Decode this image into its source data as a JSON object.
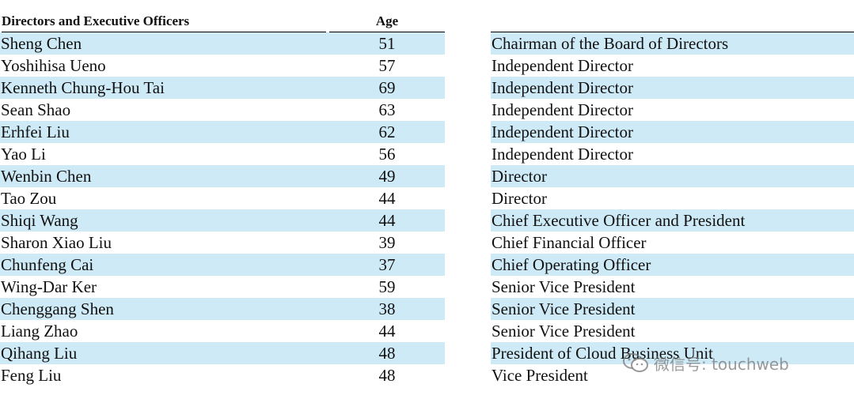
{
  "table": {
    "headers": {
      "name": "Directors and Executive Officers",
      "age": "Age",
      "position": ""
    },
    "rows": [
      {
        "name": "Sheng Chen",
        "age": "51",
        "position": "Chairman of the Board of Directors"
      },
      {
        "name": "Yoshihisa Ueno",
        "age": "57",
        "position": "Independent Director"
      },
      {
        "name": "Kenneth Chung-Hou Tai",
        "age": "69",
        "position": "Independent Director"
      },
      {
        "name": "Sean Shao",
        "age": "63",
        "position": "Independent Director"
      },
      {
        "name": "Erhfei Liu",
        "age": "62",
        "position": "Independent Director"
      },
      {
        "name": "Yao Li",
        "age": "56",
        "position": "Independent Director"
      },
      {
        "name": "Wenbin Chen",
        "age": "49",
        "position": "Director"
      },
      {
        "name": "Tao Zou",
        "age": "44",
        "position": "Director"
      },
      {
        "name": "Shiqi Wang",
        "age": "44",
        "position": "Chief Executive Officer and President"
      },
      {
        "name": "Sharon Xiao Liu",
        "age": "39",
        "position": "Chief Financial Officer"
      },
      {
        "name": "Chunfeng Cai",
        "age": "37",
        "position": "Chief Operating Officer"
      },
      {
        "name": "Wing-Dar Ker",
        "age": "59",
        "position": "Senior Vice President"
      },
      {
        "name": "Chenggang Shen",
        "age": "38",
        "position": "Senior Vice President"
      },
      {
        "name": "Liang Zhao",
        "age": "44",
        "position": "Senior Vice President"
      },
      {
        "name": "Qihang Liu",
        "age": "48",
        "position": "President of Cloud Business Unit"
      },
      {
        "name": "Feng Liu",
        "age": "48",
        "position": "Vice President"
      }
    ]
  },
  "watermark": {
    "icon": "wechat-icon",
    "text": "微信号: touchweb"
  },
  "colors": {
    "row_shade": "#cfeaf7",
    "text": "#111111"
  }
}
